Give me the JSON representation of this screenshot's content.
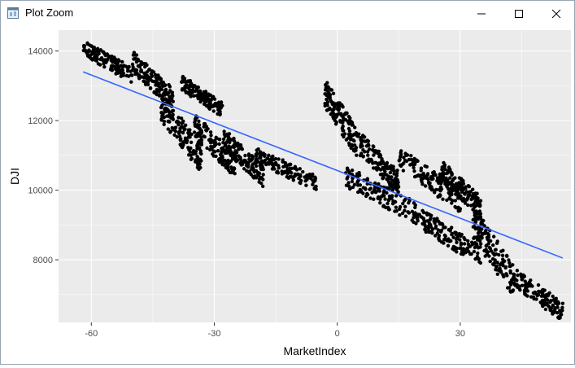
{
  "window": {
    "title": "Plot Zoom",
    "icons": {
      "app": "app-window-icon",
      "minimize": "minimize-icon",
      "maximize": "maximize-icon",
      "close": "close-icon"
    }
  },
  "chart_data": {
    "type": "scatter",
    "title": "",
    "xlabel": "MarketIndex",
    "ylabel": "DJI",
    "xlim": [
      -68,
      57
    ],
    "ylim": [
      6200,
      14600
    ],
    "xticks": [
      -60,
      -30,
      0,
      30
    ],
    "xtick_labels": [
      "-60",
      "-30",
      "0",
      "30"
    ],
    "yticks": [
      8000,
      10000,
      12000,
      14000
    ],
    "ytick_labels": [
      "8000",
      "10000",
      "12000",
      "14000"
    ],
    "grid": true,
    "colors": {
      "panel_background": "#ebebeb",
      "grid": "#ffffff",
      "points": "#000000",
      "fit_line": "#3366ff"
    },
    "fit_line": {
      "x": [
        -62,
        55
      ],
      "y": [
        13400,
        8050
      ]
    },
    "point_clusters": [
      {
        "x": [
          -62,
          -50
        ],
        "y": [
          13300,
          14100
        ]
      },
      {
        "x": [
          -50,
          -40
        ],
        "y": [
          12600,
          13700
        ]
      },
      {
        "x": [
          -43,
          -33
        ],
        "y": [
          10900,
          12400
        ]
      },
      {
        "x": [
          -38,
          -28
        ],
        "y": [
          12300,
          13100
        ]
      },
      {
        "x": [
          -35,
          -25
        ],
        "y": [
          10700,
          11900
        ]
      },
      {
        "x": [
          -28,
          -18
        ],
        "y": [
          10400,
          11500
        ]
      },
      {
        "x": [
          -20,
          -5
        ],
        "y": [
          10200,
          11000
        ]
      },
      {
        "x": [
          -3,
          5
        ],
        "y": [
          11300,
          12800
        ]
      },
      {
        "x": [
          5,
          15
        ],
        "y": [
          10200,
          11400
        ]
      },
      {
        "x": [
          15,
          30
        ],
        "y": [
          9700,
          10900
        ]
      },
      {
        "x": [
          2,
          20
        ],
        "y": [
          9300,
          10400
        ]
      },
      {
        "x": [
          20,
          35
        ],
        "y": [
          8100,
          9200
        ]
      },
      {
        "x": [
          25,
          35
        ],
        "y": [
          9500,
          10600
        ]
      },
      {
        "x": [
          33,
          43
        ],
        "y": [
          7400,
          9100
        ]
      },
      {
        "x": [
          43,
          55
        ],
        "y": [
          6500,
          7500
        ]
      }
    ]
  }
}
